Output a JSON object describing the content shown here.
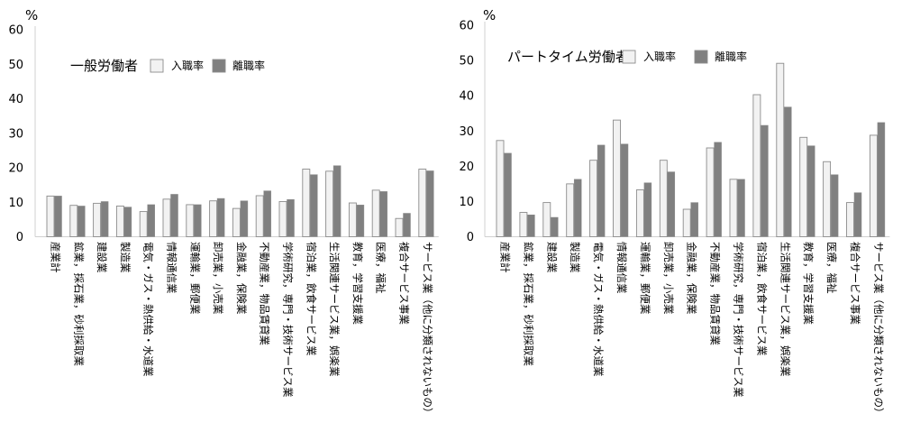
{
  "chart_data": [
    {
      "type": "bar",
      "legend_title": "一般労働者",
      "unit": "%",
      "ylim": [
        0,
        60
      ],
      "yticks": [
        "0",
        "10",
        "20",
        "30",
        "40",
        "50",
        "60"
      ],
      "grid": false,
      "legend_position": "top-left",
      "categories": [
        "産業計",
        "鉱業，採石業，砂利採取業",
        "建設業",
        "製造業",
        "電気・ガス・熱供給・水道業",
        "情報通信業",
        "運輸業，郵便業",
        "卸売業，小売業",
        "金融業，保険業",
        "不動産業，物品賃貸業",
        "学術研究，専門・技術サービス業",
        "宿泊業，飲食サービス業",
        "生活関連サービス業，娯楽業",
        "教育，学習支援業",
        "医療，福祉",
        "複合サービス事業",
        "サービス業（他に分類されないもの）"
      ],
      "series": [
        {
          "name": "入職率",
          "color": "#f2f2f2",
          "values": [
            11.8,
            9.1,
            9.7,
            8.9,
            7.3,
            10.9,
            9.3,
            10.4,
            8.2,
            11.9,
            10.2,
            19.6,
            19.0,
            9.8,
            13.5,
            5.3,
            19.6
          ]
        },
        {
          "name": "離職率",
          "color": "#808080",
          "values": [
            11.8,
            8.9,
            10.2,
            8.6,
            9.3,
            12.3,
            9.3,
            11.1,
            10.4,
            13.3,
            10.8,
            18.0,
            20.6,
            9.2,
            13.1,
            6.8,
            19.1
          ]
        }
      ]
    },
    {
      "type": "bar",
      "legend_title": "パートタイム労働者",
      "unit": "%",
      "ylim": [
        0,
        60
      ],
      "yticks": [
        "0",
        "10",
        "20",
        "30",
        "40",
        "50",
        "60"
      ],
      "grid": false,
      "legend_position": "top-left",
      "categories": [
        "産業計",
        "鉱業，採石業，砂利採取業",
        "建設業",
        "製造業",
        "電気・ガス・熱供給・水道業",
        "情報通信業",
        "運輸業，郵便業",
        "卸売業，小売業",
        "金融業，保険業",
        "不動産業，物品賃貸業",
        "学術研究，専門・技術サービス業",
        "宿泊業，飲食サービス業",
        "生活関連サービス業，娯楽業",
        "教育，学習支援業",
        "医療，福祉",
        "複合サービス事業",
        "サービス業（他に分類されないもの）"
      ],
      "series": [
        {
          "name": "入職率",
          "color": "#f2f2f2",
          "values": [
            27.3,
            6.9,
            9.7,
            15.0,
            21.7,
            33.1,
            13.3,
            21.7,
            7.8,
            25.2,
            16.3,
            40.3,
            49.2,
            28.2,
            21.3,
            9.7,
            28.8
          ]
        },
        {
          "name": "離職率",
          "color": "#808080",
          "values": [
            23.7,
            6.2,
            5.5,
            16.3,
            26.0,
            26.3,
            15.3,
            18.4,
            9.7,
            26.8,
            16.3,
            31.6,
            36.8,
            25.8,
            17.6,
            12.5,
            32.4
          ]
        }
      ]
    }
  ]
}
